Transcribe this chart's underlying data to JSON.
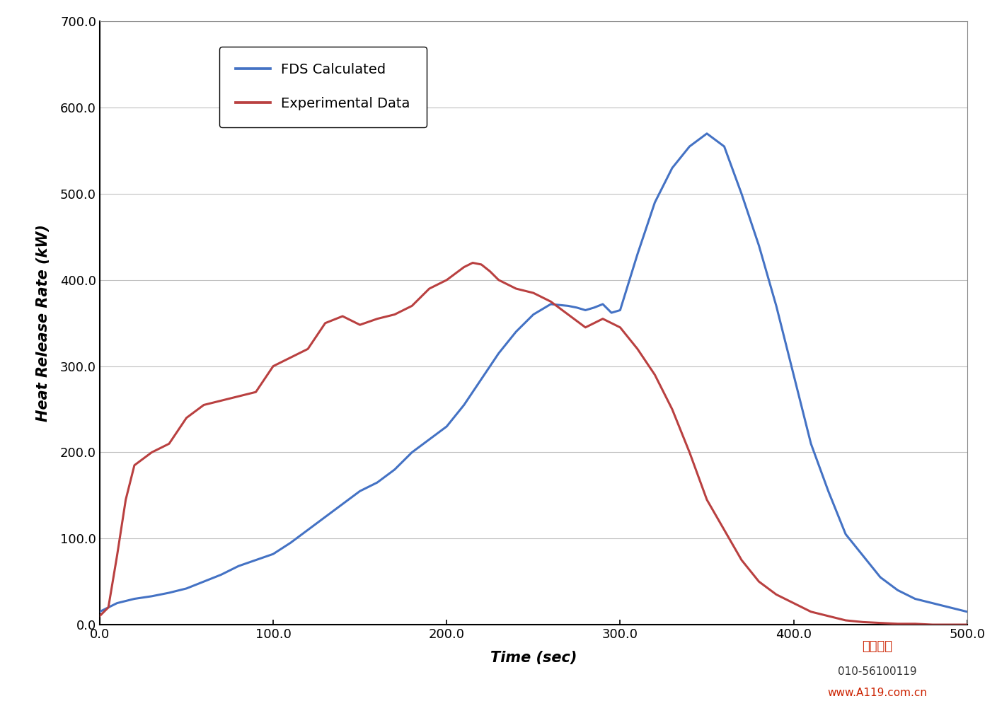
{
  "title": "",
  "xlabel": "Time (sec)",
  "ylabel": "Heat Release Rate (kW)",
  "xlim": [
    0.0,
    500.0
  ],
  "ylim": [
    0.0,
    700.0
  ],
  "xticks": [
    0.0,
    100.0,
    200.0,
    300.0,
    400.0,
    500.0
  ],
  "yticks": [
    0.0,
    100.0,
    200.0,
    300.0,
    400.0,
    500.0,
    600.0,
    700.0
  ],
  "fds_color": "#4472C4",
  "exp_color": "#B94040",
  "fds_label": "FDS Calculated",
  "exp_label": "Experimental Data",
  "fds_x": [
    0,
    5,
    10,
    20,
    30,
    40,
    50,
    60,
    70,
    80,
    90,
    100,
    110,
    120,
    130,
    140,
    150,
    160,
    170,
    180,
    190,
    200,
    210,
    220,
    230,
    240,
    250,
    260,
    270,
    275,
    280,
    285,
    290,
    295,
    300,
    310,
    320,
    330,
    340,
    350,
    360,
    370,
    380,
    390,
    400,
    410,
    420,
    430,
    440,
    450,
    460,
    470,
    480,
    490,
    500
  ],
  "fds_y": [
    15,
    20,
    25,
    30,
    33,
    37,
    42,
    50,
    58,
    68,
    75,
    82,
    95,
    110,
    125,
    140,
    155,
    165,
    180,
    200,
    215,
    230,
    255,
    285,
    315,
    340,
    360,
    372,
    370,
    368,
    365,
    368,
    372,
    362,
    365,
    430,
    490,
    530,
    555,
    570,
    555,
    500,
    440,
    370,
    290,
    210,
    155,
    105,
    80,
    55,
    40,
    30,
    25,
    20,
    15
  ],
  "exp_x": [
    0,
    5,
    10,
    15,
    20,
    30,
    40,
    50,
    60,
    70,
    80,
    90,
    100,
    110,
    120,
    130,
    140,
    150,
    160,
    170,
    180,
    190,
    200,
    210,
    215,
    220,
    225,
    230,
    240,
    250,
    260,
    270,
    280,
    290,
    295,
    300,
    310,
    320,
    330,
    340,
    350,
    360,
    370,
    380,
    390,
    400,
    410,
    420,
    430,
    440,
    450,
    460,
    470,
    480,
    490,
    500
  ],
  "exp_y": [
    10,
    20,
    80,
    145,
    185,
    200,
    210,
    240,
    255,
    260,
    265,
    270,
    300,
    310,
    320,
    350,
    358,
    348,
    355,
    360,
    370,
    390,
    400,
    415,
    420,
    418,
    410,
    400,
    390,
    385,
    375,
    360,
    345,
    355,
    350,
    345,
    320,
    290,
    250,
    200,
    145,
    110,
    75,
    50,
    35,
    25,
    15,
    10,
    5,
    3,
    2,
    1,
    1,
    0,
    0,
    0
  ],
  "background_color": "#FFFFFF",
  "line_width": 2.2,
  "legend_fontsize": 14,
  "axis_label_fontsize": 15,
  "tick_fontsize": 13,
  "grid_color": "#C0C0C0",
  "watermark_text1": "万霖消防",
  "watermark_text2": "010-56100119",
  "watermark_text3": "www.A119.com.cn"
}
